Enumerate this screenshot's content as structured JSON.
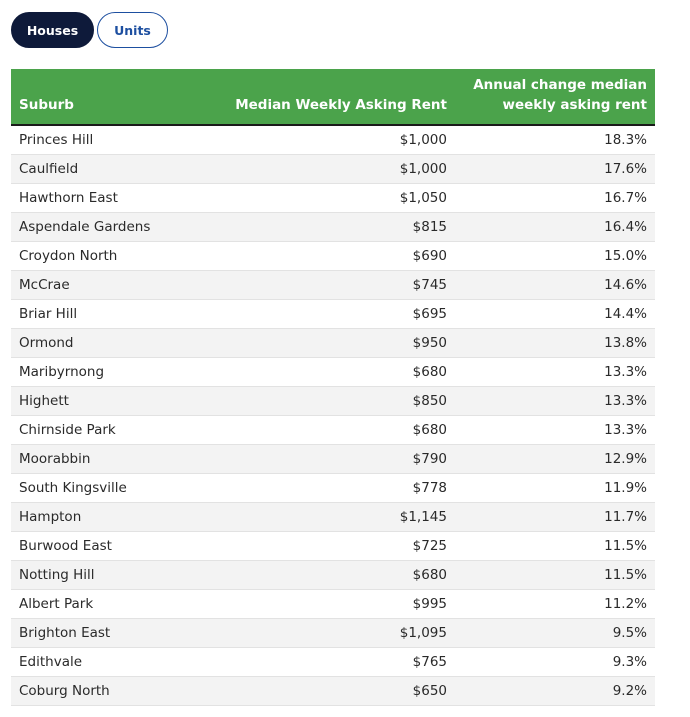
{
  "tabs": [
    {
      "label": "Houses",
      "active": true
    },
    {
      "label": "Units",
      "active": false
    }
  ],
  "table": {
    "headers": {
      "suburb": "Suburb",
      "rent": "Median Weekly Asking Rent",
      "change": "Annual change median weekly asking rent"
    },
    "rows": [
      {
        "suburb": "Princes Hill",
        "rent": "$1,000",
        "change": "18.3%"
      },
      {
        "suburb": "Caulfield",
        "rent": "$1,000",
        "change": "17.6%"
      },
      {
        "suburb": "Hawthorn East",
        "rent": "$1,050",
        "change": "16.7%"
      },
      {
        "suburb": "Aspendale Gardens",
        "rent": "$815",
        "change": "16.4%"
      },
      {
        "suburb": "Croydon North",
        "rent": "$690",
        "change": "15.0%"
      },
      {
        "suburb": "McCrae",
        "rent": "$745",
        "change": "14.6%"
      },
      {
        "suburb": "Briar Hill",
        "rent": "$695",
        "change": "14.4%"
      },
      {
        "suburb": "Ormond",
        "rent": "$950",
        "change": "13.8%"
      },
      {
        "suburb": "Maribyrnong",
        "rent": "$680",
        "change": "13.3%"
      },
      {
        "suburb": "Highett",
        "rent": "$850",
        "change": "13.3%"
      },
      {
        "suburb": "Chirnside Park",
        "rent": "$680",
        "change": "13.3%"
      },
      {
        "suburb": "Moorabbin",
        "rent": "$790",
        "change": "12.9%"
      },
      {
        "suburb": "South Kingsville",
        "rent": "$778",
        "change": "11.9%"
      },
      {
        "suburb": "Hampton",
        "rent": "$1,145",
        "change": "11.7%"
      },
      {
        "suburb": "Burwood East",
        "rent": "$725",
        "change": "11.5%"
      },
      {
        "suburb": "Notting Hill",
        "rent": "$680",
        "change": "11.5%"
      },
      {
        "suburb": "Albert Park",
        "rent": "$995",
        "change": "11.2%"
      },
      {
        "suburb": "Brighton East",
        "rent": "$1,095",
        "change": "9.5%"
      },
      {
        "suburb": "Edithvale",
        "rent": "$765",
        "change": "9.3%"
      },
      {
        "suburb": "Coburg North",
        "rent": "$650",
        "change": "9.2%"
      }
    ]
  },
  "colors": {
    "header_bg": "#4ba34b",
    "active_tab_bg": "#0e1a3a",
    "inactive_tab_text": "#1d4fa0",
    "row_stripe": "#f3f3f3"
  }
}
